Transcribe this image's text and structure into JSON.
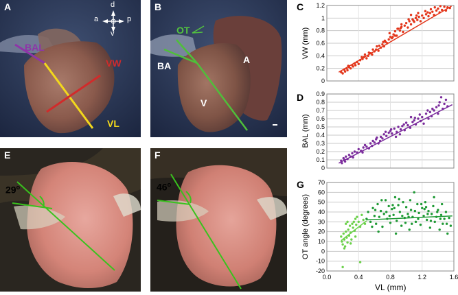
{
  "panels": {
    "A": {
      "letter": "A",
      "compass_d": "d",
      "compass_a": "a",
      "compass_p": "p",
      "compass_v": "v",
      "label_bal": "BAL",
      "label_vw": "VW",
      "label_vl": "VL",
      "colors": {
        "bal": "#8e35a8",
        "vw": "#d12b2b",
        "vl": "#f2d81c"
      }
    },
    "B": {
      "letter": "B",
      "label_ot": "OT",
      "label_ba": "BA",
      "label_a": "A",
      "label_v": "V",
      "colors": {
        "line": "#4fbf3a",
        "label": "#53c23f"
      }
    },
    "E": {
      "letter": "E",
      "angle": "29",
      "degree": "o"
    },
    "F": {
      "letter": "F",
      "angle": "46",
      "degree": "o"
    }
  },
  "charts": {
    "C_letter": "C",
    "D_letter": "D",
    "G_letter": "G",
    "xlabel": "VL (mm)"
  },
  "chart_data": [
    {
      "id": "C",
      "type": "scatter",
      "ylabel": "VW (mm)",
      "xlim": [
        0,
        1.6
      ],
      "ylim": [
        0,
        1.2
      ],
      "yticks": [
        0,
        0.2,
        0.4,
        0.6,
        0.8,
        1,
        1.2
      ],
      "color": "#e3361b",
      "fit": [
        [
          0.15,
          0.14
        ],
        [
          1.57,
          1.19
        ]
      ],
      "points": [
        [
          0.18,
          0.14
        ],
        [
          0.2,
          0.12
        ],
        [
          0.22,
          0.18
        ],
        [
          0.23,
          0.15
        ],
        [
          0.25,
          0.2
        ],
        [
          0.26,
          0.17
        ],
        [
          0.28,
          0.22
        ],
        [
          0.3,
          0.2
        ],
        [
          0.32,
          0.25
        ],
        [
          0.33,
          0.23
        ],
        [
          0.35,
          0.28
        ],
        [
          0.38,
          0.3
        ],
        [
          0.4,
          0.27
        ],
        [
          0.42,
          0.33
        ],
        [
          0.45,
          0.35
        ],
        [
          0.47,
          0.38
        ],
        [
          0.5,
          0.36
        ],
        [
          0.52,
          0.4
        ],
        [
          0.55,
          0.44
        ],
        [
          0.57,
          0.42
        ],
        [
          0.6,
          0.47
        ],
        [
          0.62,
          0.5
        ],
        [
          0.65,
          0.48
        ],
        [
          0.68,
          0.53
        ],
        [
          0.7,
          0.58
        ],
        [
          0.72,
          0.55
        ],
        [
          0.74,
          0.62
        ],
        [
          0.76,
          0.6
        ],
        [
          0.78,
          0.66
        ],
        [
          0.8,
          0.7
        ],
        [
          0.82,
          0.68
        ],
        [
          0.84,
          0.74
        ],
        [
          0.86,
          0.79
        ],
        [
          0.88,
          0.72
        ],
        [
          0.9,
          0.83
        ],
        [
          0.92,
          0.8
        ],
        [
          0.94,
          0.86
        ],
        [
          0.96,
          0.78
        ],
        [
          0.98,
          0.88
        ],
        [
          1.0,
          0.92
        ],
        [
          1.02,
          0.85
        ],
        [
          1.04,
          0.95
        ],
        [
          1.06,
          0.9
        ],
        [
          1.08,
          0.98
        ],
        [
          1.1,
          0.94
        ],
        [
          1.12,
          1.0
        ],
        [
          1.14,
          0.97
        ],
        [
          1.16,
          1.02
        ],
        [
          1.18,
          0.95
        ],
        [
          1.2,
          1.04
        ],
        [
          1.22,
          1.0
        ],
        [
          1.25,
          1.06
        ],
        [
          1.28,
          1.03
        ],
        [
          1.3,
          1.08
        ],
        [
          1.33,
          1.1
        ],
        [
          1.35,
          1.05
        ],
        [
          1.38,
          1.12
        ],
        [
          1.4,
          1.15
        ],
        [
          1.42,
          1.09
        ],
        [
          1.45,
          1.13
        ],
        [
          1.48,
          1.18
        ],
        [
          1.5,
          1.12
        ],
        [
          1.52,
          1.17
        ],
        [
          1.55,
          1.16
        ],
        [
          0.66,
          0.56
        ],
        [
          0.86,
          0.72
        ],
        [
          1.06,
          1.05
        ],
        [
          0.58,
          0.5
        ],
        [
          0.94,
          0.9
        ],
        [
          1.24,
          1.11
        ],
        [
          0.36,
          0.25
        ],
        [
          0.48,
          0.42
        ],
        [
          0.79,
          0.76
        ],
        [
          1.15,
          1.08
        ],
        [
          1.36,
          1.17
        ],
        [
          0.27,
          0.24
        ],
        [
          0.44,
          0.38
        ],
        [
          0.53,
          0.45
        ],
        [
          0.63,
          0.55
        ],
        [
          0.73,
          0.64
        ],
        [
          0.83,
          0.7
        ],
        [
          0.93,
          0.84
        ],
        [
          1.03,
          0.98
        ],
        [
          1.13,
          1.04
        ],
        [
          1.31,
          1.14
        ],
        [
          1.43,
          1.19
        ],
        [
          0.71,
          0.62
        ],
        [
          0.89,
          0.83
        ],
        [
          1.09,
          0.96
        ],
        [
          1.27,
          1.09
        ]
      ]
    },
    {
      "id": "D",
      "type": "scatter",
      "ylabel": "BAL (mm)",
      "xlim": [
        0,
        1.6
      ],
      "ylim": [
        0,
        0.9
      ],
      "yticks": [
        0,
        0.1,
        0.2,
        0.3,
        0.4,
        0.5,
        0.6,
        0.7,
        0.8,
        0.9
      ],
      "color": "#7b2c9c",
      "fit": [
        [
          0.15,
          0.06
        ],
        [
          1.58,
          0.77
        ]
      ],
      "points": [
        [
          0.18,
          0.09
        ],
        [
          0.19,
          0.06
        ],
        [
          0.21,
          0.12
        ],
        [
          0.22,
          0.1
        ],
        [
          0.24,
          0.14
        ],
        [
          0.26,
          0.11
        ],
        [
          0.28,
          0.16
        ],
        [
          0.3,
          0.14
        ],
        [
          0.32,
          0.18
        ],
        [
          0.35,
          0.2
        ],
        [
          0.38,
          0.19
        ],
        [
          0.4,
          0.23
        ],
        [
          0.43,
          0.21
        ],
        [
          0.46,
          0.25
        ],
        [
          0.48,
          0.28
        ],
        [
          0.5,
          0.26
        ],
        [
          0.53,
          0.24
        ],
        [
          0.55,
          0.3
        ],
        [
          0.58,
          0.33
        ],
        [
          0.6,
          0.31
        ],
        [
          0.62,
          0.35
        ],
        [
          0.65,
          0.3
        ],
        [
          0.68,
          0.38
        ],
        [
          0.7,
          0.36
        ],
        [
          0.72,
          0.41
        ],
        [
          0.75,
          0.39
        ],
        [
          0.78,
          0.43
        ],
        [
          0.8,
          0.45
        ],
        [
          0.82,
          0.42
        ],
        [
          0.85,
          0.48
        ],
        [
          0.88,
          0.44
        ],
        [
          0.9,
          0.5
        ],
        [
          0.93,
          0.47
        ],
        [
          0.95,
          0.51
        ],
        [
          0.98,
          0.46
        ],
        [
          1.0,
          0.55
        ],
        [
          1.02,
          0.52
        ],
        [
          1.05,
          0.49
        ],
        [
          1.08,
          0.56
        ],
        [
          1.1,
          0.58
        ],
        [
          1.12,
          0.53
        ],
        [
          1.15,
          0.6
        ],
        [
          1.18,
          0.57
        ],
        [
          1.2,
          0.62
        ],
        [
          1.22,
          0.54
        ],
        [
          1.25,
          0.66
        ],
        [
          1.28,
          0.6
        ],
        [
          1.3,
          0.68
        ],
        [
          1.32,
          0.63
        ],
        [
          1.35,
          0.7
        ],
        [
          1.38,
          0.74
        ],
        [
          1.4,
          0.66
        ],
        [
          1.42,
          0.8
        ],
        [
          1.44,
          0.86
        ],
        [
          1.46,
          0.72
        ],
        [
          1.48,
          0.78
        ],
        [
          1.5,
          0.83
        ],
        [
          1.52,
          0.75
        ],
        [
          0.87,
          0.38
        ],
        [
          1.06,
          0.62
        ],
        [
          0.33,
          0.13
        ],
        [
          0.57,
          0.27
        ],
        [
          0.74,
          0.44
        ],
        [
          0.97,
          0.53
        ],
        [
          1.17,
          0.65
        ],
        [
          1.33,
          0.72
        ],
        [
          0.23,
          0.08
        ],
        [
          0.45,
          0.19
        ],
        [
          0.67,
          0.33
        ],
        [
          0.92,
          0.41
        ],
        [
          1.11,
          0.61
        ],
        [
          1.27,
          0.7
        ],
        [
          1.41,
          0.76
        ],
        [
          0.63,
          0.37
        ],
        [
          0.81,
          0.47
        ]
      ]
    },
    {
      "id": "G",
      "type": "scatter",
      "ylabel": "OT angle (degrees)",
      "xlim": [
        0,
        1.6
      ],
      "ylim": [
        -20,
        70
      ],
      "yticks": [
        -20,
        -10,
        0,
        10,
        20,
        30,
        40,
        50,
        60,
        70
      ],
      "xticks": [
        0,
        0.4,
        0.8,
        1.2,
        1.6
      ],
      "xticklabels": [
        "0.0",
        "0.4",
        "0.8",
        "1.2",
        "1.6"
      ],
      "series": [
        {
          "color": "#6bd14a",
          "fit": [
            [
              0.18,
              11
            ],
            [
              0.5,
              31
            ]
          ],
          "points": [
            [
              0.18,
              15
            ],
            [
              0.19,
              10
            ],
            [
              0.2,
              7
            ],
            [
              0.21,
              18
            ],
            [
              0.22,
              12
            ],
            [
              0.23,
              5
            ],
            [
              0.24,
              20
            ],
            [
              0.25,
              14
            ],
            [
              0.26,
              9
            ],
            [
              0.27,
              22
            ],
            [
              0.28,
              16
            ],
            [
              0.29,
              26
            ],
            [
              0.3,
              19
            ],
            [
              0.31,
              12
            ],
            [
              0.32,
              28
            ],
            [
              0.33,
              24
            ],
            [
              0.34,
              30
            ],
            [
              0.35,
              21
            ],
            [
              0.36,
              33
            ],
            [
              0.37,
              27
            ],
            [
              0.38,
              35
            ],
            [
              0.4,
              30
            ],
            [
              0.42,
              25
            ],
            [
              0.44,
              37
            ],
            [
              0.46,
              32
            ],
            [
              0.48,
              28
            ],
            [
              0.2,
              -16
            ],
            [
              0.42,
              -11
            ],
            [
              0.22,
              3
            ],
            [
              0.3,
              8
            ],
            [
              0.36,
              15
            ],
            [
              0.26,
              30
            ],
            [
              0.24,
              28
            ]
          ]
        },
        {
          "color": "#1f9a35",
          "fit": [
            [
              0.5,
              32
            ],
            [
              1.58,
              36
            ]
          ],
          "points": [
            [
              0.5,
              33
            ],
            [
              0.52,
              40
            ],
            [
              0.55,
              30
            ],
            [
              0.58,
              44
            ],
            [
              0.6,
              36
            ],
            [
              0.62,
              28
            ],
            [
              0.64,
              48
            ],
            [
              0.66,
              35
            ],
            [
              0.68,
              41
            ],
            [
              0.7,
              25
            ],
            [
              0.72,
              38
            ],
            [
              0.74,
              52
            ],
            [
              0.76,
              33
            ],
            [
              0.78,
              46
            ],
            [
              0.8,
              29
            ],
            [
              0.82,
              43
            ],
            [
              0.84,
              37
            ],
            [
              0.86,
              55
            ],
            [
              0.88,
              31
            ],
            [
              0.9,
              47
            ],
            [
              0.92,
              40
            ],
            [
              0.94,
              26
            ],
            [
              0.96,
              50
            ],
            [
              0.98,
              34
            ],
            [
              1.0,
              45
            ],
            [
              1.02,
              38
            ],
            [
              1.04,
              22
            ],
            [
              1.06,
              42
            ],
            [
              1.08,
              35
            ],
            [
              1.1,
              60
            ],
            [
              1.12,
              30
            ],
            [
              1.14,
              48
            ],
            [
              1.16,
              39
            ],
            [
              1.18,
              27
            ],
            [
              1.2,
              44
            ],
            [
              1.22,
              36
            ],
            [
              1.24,
              50
            ],
            [
              1.26,
              32
            ],
            [
              1.28,
              41
            ],
            [
              1.3,
              24
            ],
            [
              1.32,
              38
            ],
            [
              1.34,
              46
            ],
            [
              1.36,
              30
            ],
            [
              1.38,
              35
            ],
            [
              1.4,
              42
            ],
            [
              1.42,
              22
            ],
            [
              1.44,
              37
            ],
            [
              1.46,
              28
            ],
            [
              1.48,
              33
            ],
            [
              1.5,
              40
            ],
            [
              1.52,
              18
            ],
            [
              1.54,
              34
            ],
            [
              1.56,
              26
            ],
            [
              0.65,
              20
            ],
            [
              0.85,
              44
            ],
            [
              1.05,
              52
            ],
            [
              1.25,
              45
            ],
            [
              1.45,
              48
            ],
            [
              0.75,
              40
            ],
            [
              0.95,
              36
            ],
            [
              1.15,
              33
            ],
            [
              1.35,
              55
            ],
            [
              0.57,
              25
            ],
            [
              0.79,
              36
            ],
            [
              0.99,
              29
            ],
            [
              1.19,
              48
            ],
            [
              1.39,
              40
            ],
            [
              0.87,
              18
            ],
            [
              1.07,
              28
            ],
            [
              1.27,
              38
            ],
            [
              0.69,
              52
            ],
            [
              0.91,
              53
            ],
            [
              1.11,
              41
            ],
            [
              1.31,
              31
            ],
            [
              1.51,
              28
            ],
            [
              0.61,
              42
            ],
            [
              0.83,
              47
            ],
            [
              1.03,
              35
            ],
            [
              1.23,
              43
            ],
            [
              1.43,
              33
            ]
          ]
        }
      ]
    }
  ]
}
